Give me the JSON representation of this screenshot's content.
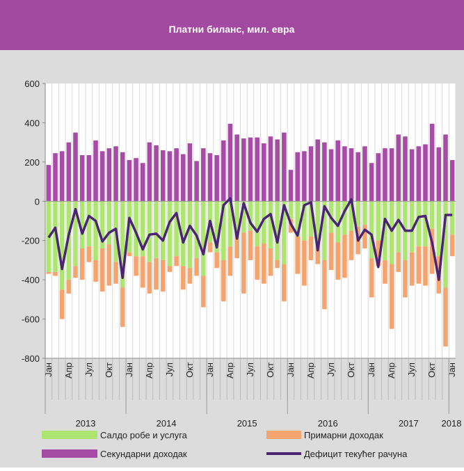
{
  "chart_data": {
    "type": "bar",
    "title": "Платни биланс, мил. евра",
    "categories": [
      "Јан",
      null,
      null,
      "Апр",
      null,
      null,
      "Јул",
      null,
      null,
      "Окт",
      null,
      null,
      "Јан",
      null,
      null,
      "Апр",
      null,
      null,
      "Јул",
      null,
      null,
      "Окт",
      null,
      null,
      "Јан",
      null,
      null,
      "Апр",
      null,
      null,
      "Јул",
      null,
      null,
      "Окт",
      null,
      null,
      "Јан",
      null,
      null,
      "Апр",
      null,
      null,
      "Јул",
      null,
      null,
      "Окт",
      null,
      null,
      "Јан",
      null,
      null,
      "Апр",
      null,
      null,
      "Јул",
      null,
      null,
      "Окт",
      null,
      null,
      "Јан"
    ],
    "years": [
      "2013",
      "2014",
      "2015",
      "2016",
      "2017",
      "2018"
    ],
    "ylim": [
      -800,
      600
    ],
    "yticks": [
      -800,
      -600,
      -400,
      -200,
      0,
      200,
      400,
      600
    ],
    "grid": "x",
    "series": [
      {
        "name": "Салдо робе и услуга",
        "type": "bar",
        "color": "#aee571",
        "values": [
          -360,
          -360,
          -450,
          -400,
          -330,
          -240,
          -230,
          -300,
          -240,
          -220,
          -310,
          -440,
          -260,
          -280,
          -280,
          -310,
          -290,
          -300,
          -330,
          -280,
          -330,
          -340,
          -290,
          -380,
          -210,
          -260,
          -300,
          -230,
          -150,
          -160,
          -150,
          -230,
          -215,
          -240,
          -300,
          -320,
          -90,
          -180,
          -200,
          -180,
          -210,
          -300,
          -160,
          -210,
          -170,
          -150,
          -130,
          -120,
          -290,
          -200,
          -300,
          -320,
          -260,
          -300,
          -260,
          -230,
          -230,
          -140,
          -280,
          -440,
          -170
        ]
      },
      {
        "name": "Примарни доходак",
        "type": "bar",
        "color": "#f4a46e",
        "values": [
          -10,
          -20,
          -150,
          -70,
          -60,
          -160,
          -80,
          -110,
          -220,
          -210,
          -110,
          -200,
          -20,
          -100,
          -160,
          -160,
          -160,
          -160,
          -30,
          -50,
          -120,
          -80,
          -90,
          -160,
          -50,
          -80,
          -210,
          -150,
          -140,
          -310,
          -150,
          -170,
          -205,
          -140,
          -40,
          -190,
          -70,
          -190,
          -230,
          -120,
          -110,
          -250,
          -190,
          -190,
          -220,
          -150,
          -140,
          -120,
          -200,
          -130,
          -120,
          -330,
          -100,
          -190,
          -170,
          -190,
          -200,
          -230,
          -190,
          -300,
          -110
        ]
      },
      {
        "name": "Секундарни доходак",
        "type": "bar",
        "color": "#a64ca6",
        "values": [
          185,
          245,
          255,
          300,
          350,
          235,
          235,
          310,
          255,
          270,
          280,
          250,
          210,
          220,
          195,
          300,
          285,
          260,
          255,
          270,
          240,
          295,
          205,
          270,
          245,
          235,
          310,
          395,
          340,
          320,
          325,
          325,
          295,
          330,
          315,
          350,
          160,
          250,
          255,
          280,
          315,
          300,
          265,
          310,
          280,
          270,
          250,
          280,
          195,
          245,
          270,
          270,
          340,
          330,
          265,
          280,
          290,
          395,
          275,
          340,
          210
        ]
      },
      {
        "name": "Дефицит текућег рачуна",
        "type": "line",
        "color": "#4b2574",
        "values": [
          -185,
          -135,
          -345,
          -170,
          -40,
          -165,
          -75,
          -100,
          -205,
          -160,
          -140,
          -390,
          -85,
          -160,
          -245,
          -170,
          -165,
          -200,
          -105,
          -60,
          -210,
          -125,
          -175,
          -270,
          -100,
          -235,
          -20,
          15,
          -190,
          -10,
          -110,
          -155,
          -90,
          -65,
          -210,
          -20,
          -115,
          -175,
          -20,
          -5,
          -250,
          -25,
          -85,
          -125,
          -50,
          10,
          -200,
          -145,
          -170,
          -335,
          -90,
          -150,
          -95,
          -150,
          -150,
          -80,
          -75,
          -210,
          -400,
          -70,
          -70
        ]
      }
    ]
  }
}
